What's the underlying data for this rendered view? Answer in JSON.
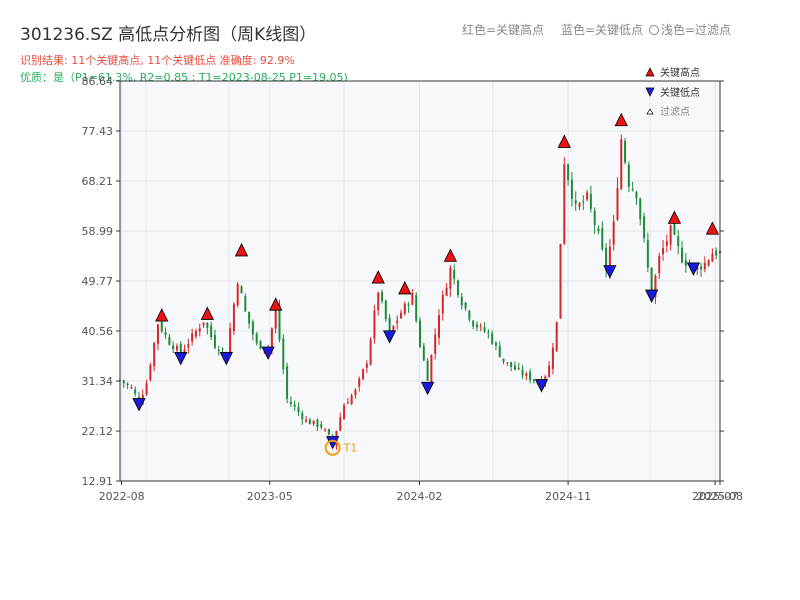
{
  "title": "301236.SZ 高低点分析图（周K线图）",
  "subtitle1": "识别结果: 11个关键高点, 11个关键低点   准确度: 92.9%",
  "subtitle2": "优质：是（P1=61.3%, R2=0.85 ; T1=2023-08-25 P1=19.05)",
  "top_legend": {
    "red": "红色=关键高点",
    "blue": "蓝色=关键低点",
    "light": "浅色=过滤点"
  },
  "legend": {
    "high": "关键高点",
    "low": "关键低点",
    "filtered": "过滤点"
  },
  "colors": {
    "up": "#d62728",
    "down": "#1f8a3a",
    "high_marker": "#ee1111",
    "low_marker": "#1a1adf",
    "t1": "#f39c12",
    "subtitle_red": "#e74c3c",
    "subtitle_green": "#27ae60"
  },
  "chart_data": {
    "type": "candlestick",
    "y_ticks": [
      "12.91",
      "22.12",
      "31.34",
      "40.56",
      "49.77",
      "58.99",
      "68.21",
      "77.43",
      "86.64"
    ],
    "ylim": [
      12.91,
      86.64
    ],
    "x_ticks": [
      "2022-08",
      "2023-05",
      "2024-02",
      "2024-11",
      "2025-07",
      "2025-08"
    ],
    "x_range": [
      "2022-07-29",
      "2025-08-08"
    ],
    "t1_label": "T1",
    "t1": {
      "date": "2023-08-25",
      "value": 19.05
    },
    "anchors": [
      [
        "2022-07-29",
        31.5
      ],
      [
        "2022-08-19",
        30.0
      ],
      [
        "2022-09-02",
        27.5
      ],
      [
        "2022-09-16",
        31.0
      ],
      [
        "2022-10-07",
        42.0
      ],
      [
        "2022-10-28",
        38.5
      ],
      [
        "2022-11-18",
        36.5
      ],
      [
        "2022-12-09",
        39.5
      ],
      [
        "2022-12-30",
        42.5
      ],
      [
        "2023-01-20",
        38.0
      ],
      [
        "2023-02-10",
        36.5
      ],
      [
        "2023-03-03",
        50.0
      ],
      [
        "2023-03-17",
        44.0
      ],
      [
        "2023-04-07",
        38.0
      ],
      [
        "2023-04-28",
        37.5
      ],
      [
        "2023-05-12",
        44.5
      ],
      [
        "2023-06-02",
        28.0
      ],
      [
        "2023-07-07",
        24.0
      ],
      [
        "2023-08-04",
        23.0
      ],
      [
        "2023-08-25",
        20.0
      ],
      [
        "2023-09-15",
        27.0
      ],
      [
        "2023-10-06",
        29.5
      ],
      [
        "2023-10-27",
        35.0
      ],
      [
        "2023-11-17",
        48.0
      ],
      [
        "2023-12-08",
        40.0
      ],
      [
        "2023-12-29",
        44.0
      ],
      [
        "2024-01-19",
        47.0
      ],
      [
        "2024-02-02",
        38.0
      ],
      [
        "2024-02-16",
        32.0
      ],
      [
        "2024-03-08",
        44.0
      ],
      [
        "2024-03-29",
        52.0
      ],
      [
        "2024-04-19",
        46.0
      ],
      [
        "2024-05-10",
        42.0
      ],
      [
        "2024-06-07",
        40.0
      ],
      [
        "2024-07-05",
        35.0
      ],
      [
        "2024-08-02",
        33.0
      ],
      [
        "2024-08-30",
        31.5
      ],
      [
        "2024-09-13",
        31.0
      ],
      [
        "2024-09-27",
        34.0
      ],
      [
        "2024-10-11",
        42.0
      ],
      [
        "2024-10-25",
        72.0
      ],
      [
        "2024-11-15",
        63.0
      ],
      [
        "2024-12-06",
        65.0
      ],
      [
        "2024-12-27",
        58.0
      ],
      [
        "2025-01-10",
        52.0
      ],
      [
        "2025-01-24",
        60.0
      ],
      [
        "2025-02-07",
        76.0
      ],
      [
        "2025-02-21",
        68.0
      ],
      [
        "2025-03-07",
        66.0
      ],
      [
        "2025-03-21",
        57.0
      ],
      [
        "2025-04-04",
        47.0
      ],
      [
        "2025-04-18",
        54.0
      ],
      [
        "2025-05-09",
        59.0
      ],
      [
        "2025-05-30",
        54.0
      ],
      [
        "2025-06-20",
        52.0
      ],
      [
        "2025-07-11",
        53.0
      ],
      [
        "2025-07-25",
        55.0
      ],
      [
        "2025-08-08",
        55.0
      ]
    ],
    "highs": [
      {
        "date": "2022-10-14",
        "value": 43.5
      },
      {
        "date": "2023-01-06",
        "value": 43.8
      },
      {
        "date": "2023-03-10",
        "value": 55.5
      },
      {
        "date": "2023-05-12",
        "value": 45.5
      },
      {
        "date": "2023-11-17",
        "value": 50.5
      },
      {
        "date": "2024-01-05",
        "value": 48.5
      },
      {
        "date": "2024-03-29",
        "value": 54.5
      },
      {
        "date": "2024-10-25",
        "value": 75.5
      },
      {
        "date": "2025-02-07",
        "value": 79.5
      },
      {
        "date": "2025-05-16",
        "value": 61.5
      },
      {
        "date": "2025-07-25",
        "value": 59.5
      }
    ],
    "lows": [
      {
        "date": "2022-09-02",
        "value": 27.0
      },
      {
        "date": "2022-11-18",
        "value": 35.5
      },
      {
        "date": "2023-02-10",
        "value": 35.5
      },
      {
        "date": "2023-04-28",
        "value": 36.5
      },
      {
        "date": "2023-08-25",
        "value": 20.0
      },
      {
        "date": "2023-12-08",
        "value": 39.5
      },
      {
        "date": "2024-02-16",
        "value": 30.0
      },
      {
        "date": "2024-09-13",
        "value": 30.5
      },
      {
        "date": "2025-01-17",
        "value": 51.5
      },
      {
        "date": "2025-04-04",
        "value": 47.0
      },
      {
        "date": "2025-06-20",
        "value": 52.0
      }
    ]
  }
}
